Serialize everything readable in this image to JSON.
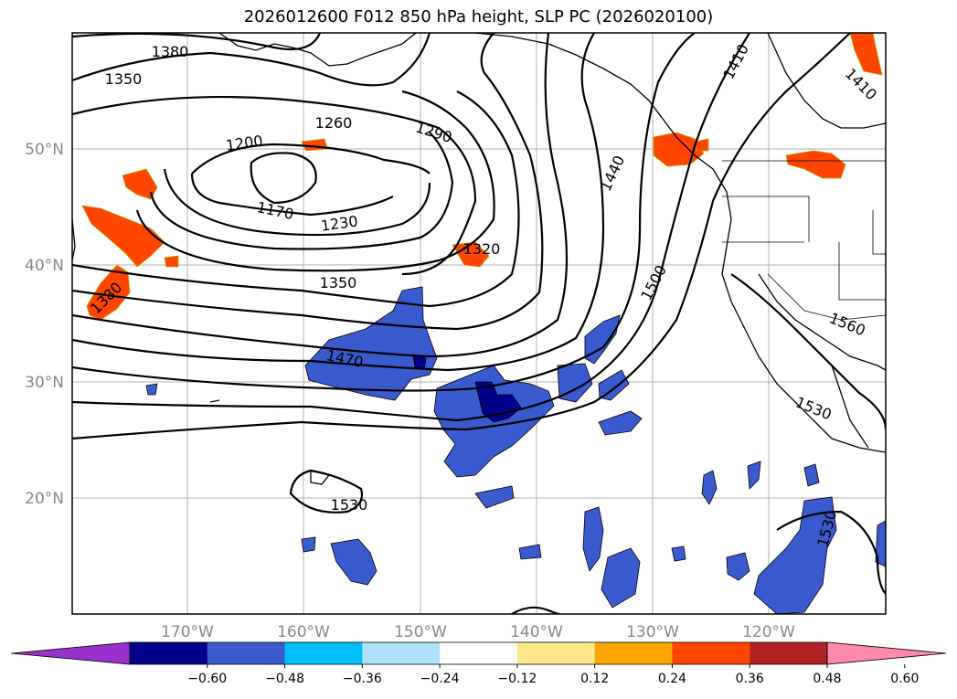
{
  "title": "2026012600 F012 850 hPa height, SLP PC (2026020100)",
  "lat_labels": [
    "50°N",
    "40°N",
    "30°N",
    "20°N"
  ],
  "lon_labels": [
    "170°W",
    "160°W",
    "150°W",
    "140°W",
    "130°W",
    "120°W"
  ],
  "contour_labels": [
    "1380",
    "1350",
    "1260",
    "1290",
    "1200",
    "1170",
    "1230",
    "1320",
    "1350",
    "1470",
    "1380",
    "1440",
    "1500",
    "1410",
    "1410",
    "1560",
    "1530",
    "1530",
    "1530"
  ],
  "colorbar": {
    "colors": [
      "#9932cc",
      "#00008b",
      "#3a5bd0",
      "#00bfff",
      "#aee2fa",
      "#ffffff",
      "#ffe88c",
      "#ffa500",
      "#ff4500",
      "#b22222",
      "#ff88aa"
    ],
    "tick_labels": [
      "−0.60",
      "−0.48",
      "−0.36",
      "−0.24",
      "−0.12",
      "0.12",
      "0.24",
      "0.36",
      "0.48",
      "0.60"
    ]
  }
}
